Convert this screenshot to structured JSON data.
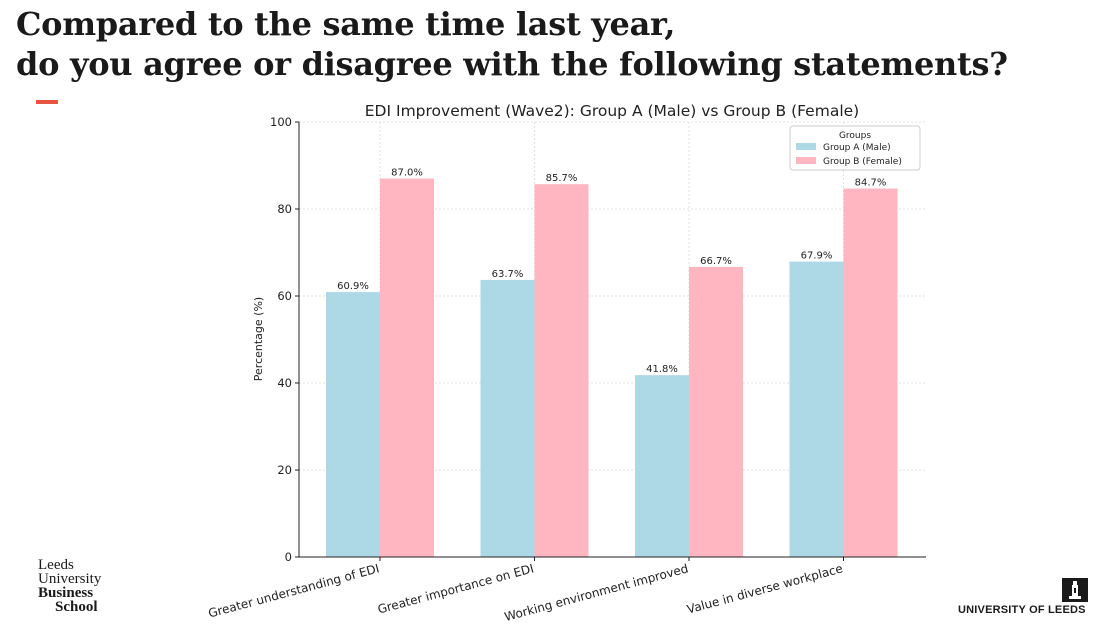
{
  "slide": {
    "title_line1": "Compared to the same time last year,",
    "title_line2": "do you agree or disagree with the following statements?",
    "accent_color": "#e8533f"
  },
  "chart_data": {
    "type": "bar",
    "title": "EDI Improvement (Wave2): Group A (Male) vs Group B (Female)",
    "xlabel": "",
    "ylabel": "Percentage (%)",
    "ylim": [
      0,
      100
    ],
    "yticks": [
      0,
      20,
      40,
      60,
      80,
      100
    ],
    "grid": true,
    "categories": [
      "Greater understanding of EDI",
      "Greater importance on EDI",
      "Working environment improved",
      "Value in diverse workplace"
    ],
    "series": [
      {
        "name": "Group A (Male)",
        "color": "#add8e6",
        "values": [
          60.9,
          63.7,
          41.8,
          67.9
        ],
        "labels": [
          "60.9%",
          "63.7%",
          "41.8%",
          "67.9%"
        ]
      },
      {
        "name": "Group B (Female)",
        "color": "#ffb6c1",
        "values": [
          87.0,
          85.7,
          66.7,
          84.7
        ],
        "labels": [
          "87.0%",
          "85.7%",
          "66.7%",
          "84.7%"
        ]
      }
    ],
    "legend": {
      "title": "Groups",
      "placement": "top-right"
    }
  },
  "logos": {
    "lubs": {
      "line1": "Leeds",
      "line2": "University",
      "line3": "Business",
      "line4": "School"
    },
    "uol": {
      "name": "UNIVERSITY OF LEEDS",
      "crest": "university-crest-icon"
    }
  }
}
